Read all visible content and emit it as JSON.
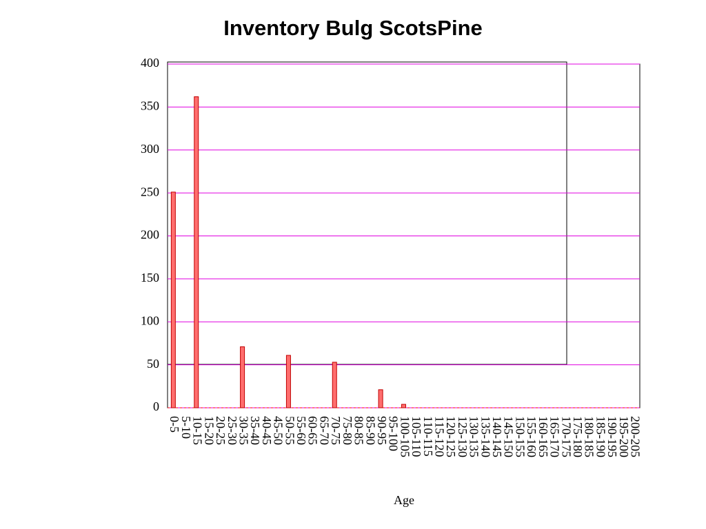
{
  "chart_data": {
    "type": "bar",
    "title": "Inventory Bulg ScotsPine",
    "x_label": "Age",
    "categories": [
      "0-5",
      "5-10",
      "10-15",
      "15-20",
      "20-25",
      "25-30",
      "30-35",
      "35-40",
      "40-45",
      "45-50",
      "50-55",
      "55-60",
      "60-65",
      "65-70",
      "70-75",
      "75-80",
      "80-85",
      "85-90",
      "90-95",
      "95-100",
      "100-105",
      "105-110",
      "110-115",
      "115-120",
      "120-125",
      "125-130",
      "130-135",
      "135-140",
      "140-145",
      "145-150",
      "150-155",
      "155-160",
      "160-165",
      "165-170",
      "170-175",
      "175-180",
      "180-185",
      "185-190",
      "190-195",
      "195-200",
      "200-205"
    ],
    "values": [
      251,
      0,
      362,
      0,
      0,
      0,
      71,
      0,
      0,
      0,
      61,
      0,
      0,
      0,
      53,
      0,
      0,
      0,
      21,
      0,
      4,
      0,
      0,
      0,
      0,
      0,
      0,
      0,
      0,
      0,
      0,
      0,
      0,
      0,
      0,
      0,
      0,
      0,
      0,
      0,
      0
    ],
    "color": "#ff6e6e",
    "ylim": [
      0,
      400
    ],
    "yticks": [
      0,
      50,
      100,
      150,
      200,
      250,
      300,
      350,
      400
    ],
    "grid": true,
    "grid_color": "#e000e0"
  }
}
